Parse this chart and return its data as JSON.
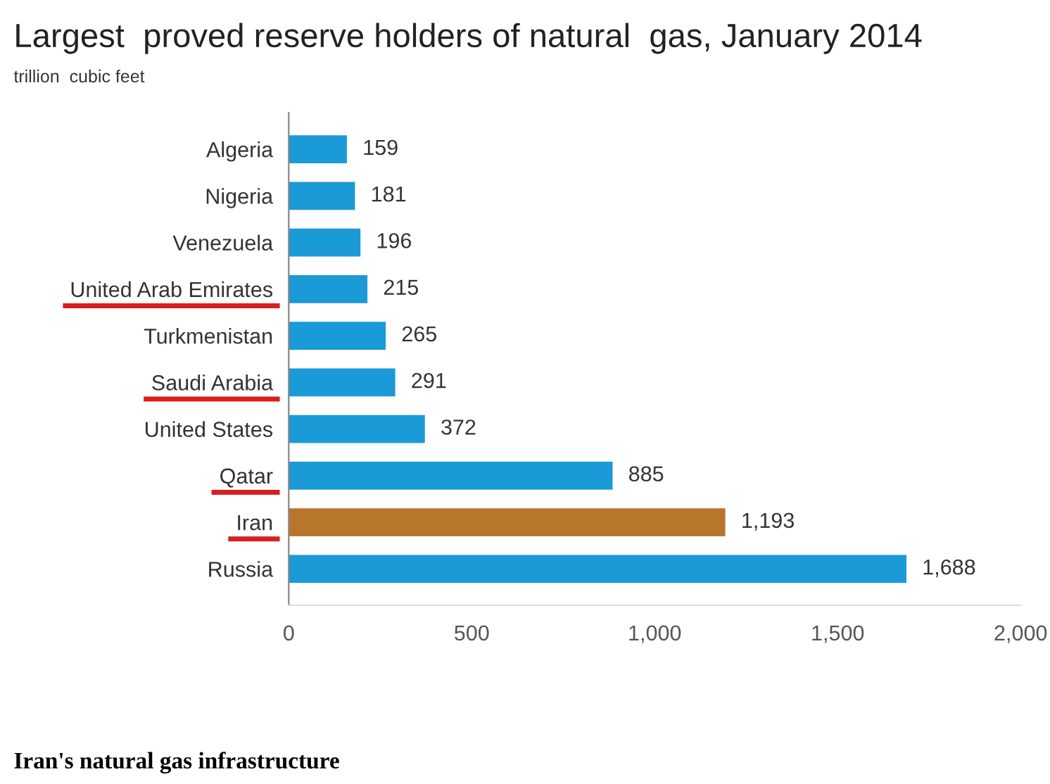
{
  "chart_data": {
    "type": "bar",
    "orientation": "horizontal",
    "title": "Largest  proved reserve holders of natural  gas, January 2014",
    "subtitle": "trillion  cubic feet",
    "categories": [
      "Algeria",
      "Nigeria",
      "Venezuela",
      "United Arab Emirates",
      "Turkmenistan",
      "Saudi Arabia",
      "United States",
      "Qatar",
      "Iran",
      "Russia"
    ],
    "values": [
      159,
      181,
      196,
      215,
      265,
      291,
      372,
      885,
      1193,
      1688
    ],
    "colors": [
      "#1a9ad7",
      "#1a9ad7",
      "#1a9ad7",
      "#1a9ad7",
      "#1a9ad7",
      "#1a9ad7",
      "#1a9ad7",
      "#1a9ad7",
      "#b8762c",
      "#1a9ad7"
    ],
    "value_labels": [
      "159",
      "181",
      "196",
      "215",
      "265",
      "291",
      "372",
      "885",
      "1,193",
      "1,688"
    ],
    "xlim": [
      0,
      2000
    ],
    "xticks": [
      0,
      500,
      {
        "value": 1000,
        "label": "1,000"
      },
      {
        "value": 1500,
        "label": "1,500"
      },
      {
        "value": 2000,
        "label": "2,000"
      }
    ],
    "grid": false,
    "legend": false,
    "annotations": [
      "Iran's natural gas infrastructure"
    ]
  }
}
